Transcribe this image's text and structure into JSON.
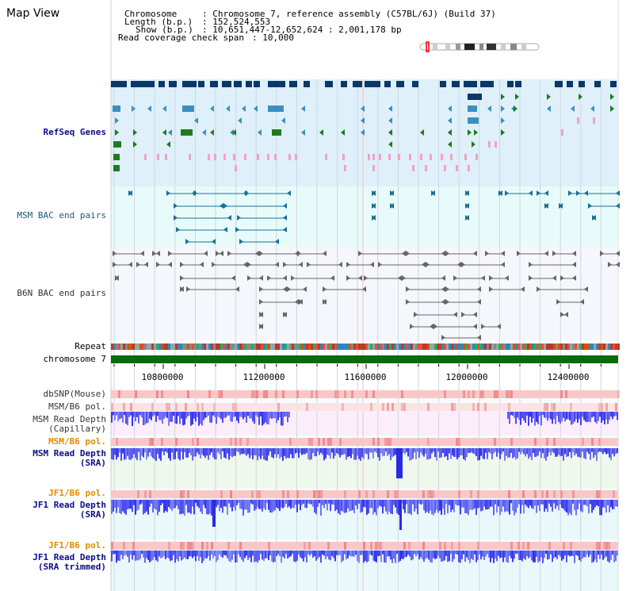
{
  "app": {
    "title": "Map View"
  },
  "header": {
    "chromosome_key": "Chromosome",
    "chromosome_value": ": Chromosome 7, reference assembly (C57BL/6J) (Build 37)",
    "length_key": "Length (b.p.)",
    "length_value": ": 152,524,553",
    "show_key": "Show (b.p.)",
    "show_value": ": 10,651,447-12,652,624 : 2,001,178 bp",
    "coverage_key": "Read coverage check span",
    "coverage_value": ": 10,000"
  },
  "tracks": {
    "refseq": "RefSeq Genes",
    "msm_bac": "MSM BAC end pairs",
    "b6n_bac": "B6N BAC end pairs",
    "repeat": "Repeat",
    "chromosome": "chromosome 7",
    "dbsnp": "dbSNP(Mouse)",
    "msm_b6_pol_1": "MSM/B6 pol.",
    "msm_depth_cap_1": "MSM Read Depth",
    "msm_depth_cap_2": "(Capillary)",
    "msm_b6_pol_2": "MSM/B6 pol.",
    "msm_depth_sra_1": "MSM Read Depth",
    "msm_depth_sra_2": "(SRA)",
    "jf1_b6_pol_1": "JF1/B6 pol.",
    "jf1_depth_sra_1": "JF1 Read Depth",
    "jf1_depth_sra_2": "(SRA)",
    "jf1_b6_pol_2": "JF1/B6 pol.",
    "jf1_depth_trim_1": "JF1 Read Depth",
    "jf1_depth_trim_2": "(SRA trimmed)"
  },
  "axis": {
    "ticks": [
      "10800000",
      "11200000",
      "11600000",
      "12000000",
      "12400000"
    ]
  },
  "colors": {
    "refseq_bg": "#dff0fa",
    "bac_bg": "#e8fbfb",
    "b6n_bg": "#f5f7fc",
    "chrom_bar": "#0a6b0a",
    "snp_bg": "#f8d0d0",
    "depth_blue": "#3333ee"
  }
}
